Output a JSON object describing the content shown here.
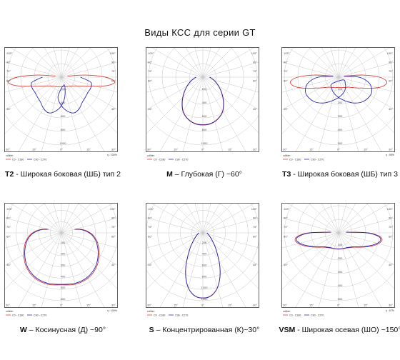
{
  "title": "Виды КСС для серии GT",
  "legend": {
    "unit": "cd/klm",
    "c0_label": "C0 - C180",
    "c90_label": "C90 - C270",
    "c0_color": "#d9403a",
    "c90_color": "#2a2ab3"
  },
  "angle_labels": [
    "105°",
    "90°",
    "75°",
    "60°",
    "45°",
    "30°",
    "15°",
    "0°"
  ],
  "chart_data": [
    {
      "type": "polar",
      "code": "T2",
      "caption": "- Широкая боковая (ШБ) тип 2",
      "efficiency": "η : 100%",
      "radial_ticks": [
        "200",
        "400",
        "600",
        "800",
        "1000"
      ],
      "rmax": 1000,
      "series": [
        {
          "name": "C0 - C180",
          "angles": [
            0,
            15,
            30,
            45,
            60,
            65,
            70,
            75,
            80,
            85,
            90,
            95,
            100
          ],
          "values": [
            140,
            145,
            160,
            185,
            260,
            310,
            390,
            520,
            700,
            790,
            650,
            350,
            90
          ]
        },
        {
          "name": "C90 - C270",
          "angles": [
            -20,
            -10,
            0,
            10,
            20,
            30,
            40,
            50,
            60,
            70,
            80,
            90
          ],
          "values": [
            120,
            290,
            420,
            510,
            560,
            530,
            480,
            460,
            450,
            460,
            440,
            280
          ]
        }
      ]
    },
    {
      "type": "polar",
      "code": "M",
      "caption": "– Глубокая (Г) ~60°",
      "efficiency": "",
      "radial_ticks": [
        "200",
        "400",
        "600",
        "800",
        "1000"
      ],
      "rmax": 1000,
      "series": [
        {
          "name": "C0 - C180",
          "angles": [
            0,
            10,
            20,
            30,
            40,
            50,
            60,
            70,
            80,
            90
          ],
          "values": [
            700,
            690,
            650,
            580,
            470,
            360,
            270,
            195,
            140,
            100
          ]
        },
        {
          "name": "C90 - C270",
          "angles": [
            0,
            10,
            20,
            30,
            40,
            50,
            60,
            70,
            80,
            90
          ],
          "values": [
            705,
            695,
            655,
            585,
            475,
            365,
            272,
            198,
            142,
            100
          ]
        }
      ]
    },
    {
      "type": "polar",
      "code": "T3",
      "caption": "- Широкая боковая (ШБ) тип 3",
      "efficiency": "η : 95%",
      "radial_ticks": [
        "100",
        "200",
        "300",
        "400",
        "500"
      ],
      "rmax": 500,
      "series": [
        {
          "name": "C0 - C180",
          "angles": [
            0,
            15,
            30,
            45,
            55,
            60,
            65,
            70,
            75,
            80,
            85,
            90,
            95,
            100
          ],
          "values": [
            75,
            80,
            88,
            105,
            135,
            160,
            190,
            240,
            300,
            345,
            355,
            300,
            180,
            40
          ]
        },
        {
          "name": "C90 - C270",
          "angles": [
            -60,
            -45,
            -30,
            -15,
            0,
            15,
            30,
            45,
            60,
            70,
            80,
            90,
            100
          ],
          "values": [
            40,
            70,
            100,
            125,
            150,
            180,
            220,
            255,
            270,
            260,
            225,
            150,
            40
          ]
        }
      ]
    },
    {
      "type": "polar",
      "code": "W",
      "caption": "– Косинусная (Д) ~90°",
      "efficiency": "η : 100%",
      "radial_ticks": [
        "100",
        "200",
        "300",
        "400",
        "500",
        "600"
      ],
      "rmax": 600,
      "series": [
        {
          "name": "C0 - C180",
          "angles": [
            0,
            15,
            30,
            45,
            60,
            75,
            85,
            90,
            95,
            100,
            105
          ],
          "values": [
            460,
            470,
            465,
            435,
            385,
            330,
            285,
            255,
            220,
            180,
            130
          ]
        },
        {
          "name": "C90 - C270",
          "angles": [
            0,
            15,
            30,
            45,
            60,
            75,
            85,
            90,
            95,
            100,
            105
          ],
          "values": [
            455,
            462,
            455,
            425,
            375,
            320,
            275,
            245,
            210,
            170,
            120
          ]
        }
      ]
    },
    {
      "type": "polar",
      "code": "S",
      "caption": "– Концентрированная (К)~30°",
      "efficiency": "",
      "radial_ticks": [
        "200",
        "400",
        "600",
        "800",
        "1000",
        "1200"
      ],
      "rmax": 1200,
      "series": [
        {
          "name": "C0 - C180",
          "angles": [
            0,
            5,
            10,
            15,
            20,
            25,
            30,
            40,
            50,
            60,
            70,
            80,
            90
          ],
          "values": [
            1150,
            1140,
            1090,
            1000,
            870,
            720,
            570,
            350,
            220,
            150,
            110,
            85,
            70
          ]
        },
        {
          "name": "C90 - C270",
          "angles": [
            0,
            5,
            10,
            15,
            20,
            25,
            30,
            40,
            50,
            60,
            70,
            80,
            90
          ],
          "values": [
            1152,
            1142,
            1092,
            1002,
            872,
            722,
            572,
            352,
            222,
            152,
            112,
            87,
            72
          ]
        }
      ]
    },
    {
      "type": "polar",
      "code": "VSM",
      "caption": "- Широкая осевая (ШО) ~150°",
      "efficiency": "η : 97%",
      "radial_ticks": [
        "100",
        "200",
        "300",
        "400",
        "500"
      ],
      "rmax": 500,
      "series": [
        {
          "name": "C0 - C180",
          "angles": [
            0,
            15,
            30,
            45,
            55,
            60,
            65,
            70,
            75,
            80,
            85,
            90,
            95
          ],
          "values": [
            120,
            122,
            128,
            150,
            185,
            210,
            240,
            275,
            305,
            325,
            305,
            220,
            60
          ]
        },
        {
          "name": "C90 - C270",
          "angles": [
            0,
            15,
            30,
            45,
            55,
            60,
            65,
            70,
            75,
            80,
            85,
            90,
            95
          ],
          "values": [
            118,
            120,
            125,
            146,
            180,
            205,
            232,
            265,
            295,
            315,
            295,
            210,
            55
          ]
        }
      ]
    }
  ]
}
